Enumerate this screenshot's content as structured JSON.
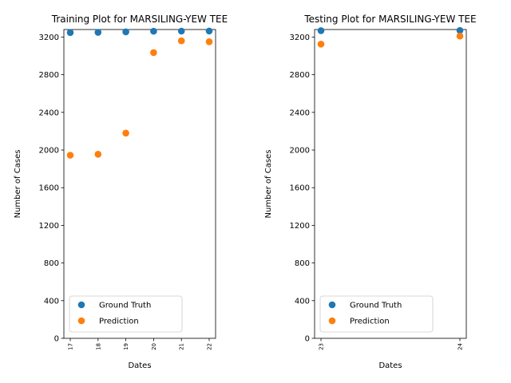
{
  "chart_data": [
    {
      "type": "scatter",
      "title": "Training Plot for MARSILING-YEW TEE",
      "xlabel": "Dates",
      "ylabel": "Number of Cases",
      "x": [
        "17",
        "18",
        "19",
        "20",
        "21",
        "22"
      ],
      "ylim": [
        0,
        3280
      ],
      "yticks": [
        0,
        400,
        800,
        1200,
        1600,
        2000,
        2400,
        2800,
        3200
      ],
      "series": [
        {
          "name": "Ground Truth",
          "color": "#1f77b4",
          "values": [
            3248,
            3250,
            3255,
            3262,
            3263,
            3264
          ]
        },
        {
          "name": "Prediction",
          "color": "#ff7f0e",
          "values": [
            1945,
            1955,
            2180,
            3035,
            3160,
            3150
          ]
        }
      ],
      "legend": "lower-left",
      "grid": false
    },
    {
      "type": "scatter",
      "title": "Testing Plot for MARSILING-YEW TEE",
      "xlabel": "Dates",
      "ylabel": "Number of Cases",
      "x": [
        "23",
        "24"
      ],
      "ylim": [
        0,
        3280
      ],
      "yticks": [
        0,
        400,
        800,
        1200,
        1600,
        2000,
        2400,
        2800,
        3200
      ],
      "series": [
        {
          "name": "Ground Truth",
          "color": "#1f77b4",
          "values": [
            3268,
            3270
          ]
        },
        {
          "name": "Prediction",
          "color": "#ff7f0e",
          "values": [
            3125,
            3210
          ]
        }
      ],
      "legend": "lower-left",
      "grid": false
    }
  ]
}
